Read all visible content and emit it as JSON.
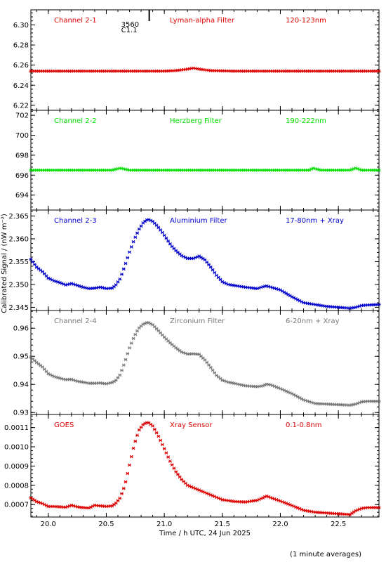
{
  "chart_data": {
    "type": "scatter",
    "xlabel": "Time / h UTC, 24 Jun 2025",
    "ylabel": "Calibrated Signal / (nW m⁻²)",
    "footnote": "(1 minute averages)",
    "xlim": [
      19.85,
      22.85
    ],
    "xticks": [
      "20.0",
      "20.5",
      "21.0",
      "21.5",
      "22.0",
      "22.5"
    ],
    "xtick_values": [
      20.0,
      20.5,
      21.0,
      21.5,
      22.0,
      22.5
    ],
    "flare_marker": {
      "x": 20.87,
      "label_top": "3560",
      "label_bottom": "C1.1"
    },
    "panels": [
      {
        "channel": "Channel 2-1",
        "filter": "Lyman-alpha Filter",
        "band": "120-123nm",
        "color": "#dd0000",
        "ylim": [
          6.215,
          6.315
        ],
        "yticks": [
          "6.22",
          "6.24",
          "6.26",
          "6.28",
          "6.30"
        ],
        "ytick_values": [
          6.22,
          6.24,
          6.26,
          6.28,
          6.3
        ],
        "points": [
          [
            19.85,
            6.254
          ],
          [
            20.0,
            6.254
          ],
          [
            20.2,
            6.254
          ],
          [
            20.4,
            6.254
          ],
          [
            20.6,
            6.254
          ],
          [
            20.8,
            6.254
          ],
          [
            21.0,
            6.254
          ],
          [
            21.1,
            6.2545
          ],
          [
            21.2,
            6.256
          ],
          [
            21.25,
            6.257
          ],
          [
            21.3,
            6.256
          ],
          [
            21.4,
            6.2545
          ],
          [
            21.6,
            6.254
          ],
          [
            21.8,
            6.254
          ],
          [
            22.0,
            6.254
          ],
          [
            22.2,
            6.254
          ],
          [
            22.4,
            6.254
          ],
          [
            22.6,
            6.254
          ],
          [
            22.85,
            6.254
          ]
        ]
      },
      {
        "channel": "Channel 2-2",
        "filter": "Herzberg Filter",
        "band": "190-222nm",
        "color": "#00dd00",
        "ylim": [
          692.5,
          702.5
        ],
        "yticks": [
          "694",
          "696",
          "698",
          "700",
          "702"
        ],
        "ytick_values": [
          694,
          696,
          698,
          700,
          702
        ],
        "points": [
          [
            19.85,
            696.5
          ],
          [
            20.2,
            696.5
          ],
          [
            20.55,
            696.5
          ],
          [
            20.62,
            696.7
          ],
          [
            20.7,
            696.5
          ],
          [
            21.0,
            696.5
          ],
          [
            21.5,
            696.5
          ],
          [
            22.0,
            696.5
          ],
          [
            22.25,
            696.5
          ],
          [
            22.28,
            696.7
          ],
          [
            22.35,
            696.5
          ],
          [
            22.6,
            696.5
          ],
          [
            22.65,
            696.7
          ],
          [
            22.7,
            696.5
          ],
          [
            22.85,
            696.5
          ]
        ]
      },
      {
        "channel": "Channel 2-3",
        "filter": "Aluminium Filter",
        "band": "17-80nm + Xray",
        "color": "#0000cc",
        "ylim": [
          2.3443,
          2.3663
        ],
        "yticks": [
          "2.345",
          "2.350",
          "2.355",
          "2.360",
          "2.365"
        ],
        "ytick_values": [
          2.345,
          2.35,
          2.355,
          2.36,
          2.365
        ],
        "points": [
          [
            19.85,
            2.3555
          ],
          [
            19.9,
            2.3538
          ],
          [
            19.95,
            2.3528
          ],
          [
            20.0,
            2.3514
          ],
          [
            20.05,
            2.3508
          ],
          [
            20.1,
            2.3504
          ],
          [
            20.15,
            2.3499
          ],
          [
            20.2,
            2.3502
          ],
          [
            20.25,
            2.3498
          ],
          [
            20.3,
            2.3494
          ],
          [
            20.35,
            2.3491
          ],
          [
            20.4,
            2.3492
          ],
          [
            20.45,
            2.3494
          ],
          [
            20.5,
            2.3491
          ],
          [
            20.55,
            2.3492
          ],
          [
            20.58,
            2.3498
          ],
          [
            20.62,
            2.3513
          ],
          [
            20.66,
            2.3541
          ],
          [
            20.7,
            2.3571
          ],
          [
            20.74,
            2.3598
          ],
          [
            20.78,
            2.362
          ],
          [
            20.82,
            2.3636
          ],
          [
            20.86,
            2.3643
          ],
          [
            20.9,
            2.3638
          ],
          [
            20.94,
            2.3628
          ],
          [
            20.98,
            2.3615
          ],
          [
            21.02,
            2.36
          ],
          [
            21.06,
            2.3585
          ],
          [
            21.1,
            2.3574
          ],
          [
            21.15,
            2.3563
          ],
          [
            21.2,
            2.3557
          ],
          [
            21.25,
            2.3557
          ],
          [
            21.3,
            2.3562
          ],
          [
            21.35,
            2.3554
          ],
          [
            21.4,
            2.3538
          ],
          [
            21.45,
            2.352
          ],
          [
            21.5,
            2.3506
          ],
          [
            21.55,
            2.35
          ],
          [
            21.6,
            2.3498
          ],
          [
            21.7,
            2.3494
          ],
          [
            21.8,
            2.3491
          ],
          [
            21.85,
            2.3495
          ],
          [
            21.88,
            2.3497
          ],
          [
            21.92,
            2.3494
          ],
          [
            22.0,
            2.3488
          ],
          [
            22.1,
            2.3473
          ],
          [
            22.2,
            2.346
          ],
          [
            22.3,
            2.3456
          ],
          [
            22.4,
            2.3452
          ],
          [
            22.5,
            2.345
          ],
          [
            22.6,
            2.3448
          ],
          [
            22.65,
            2.345
          ],
          [
            22.7,
            2.3454
          ],
          [
            22.75,
            2.3455
          ],
          [
            22.85,
            2.3456
          ]
        ]
      },
      {
        "channel": "Channel 2-4",
        "filter": "Zirconium Filter",
        "band": "6-20nm + Xray",
        "color": "#777777",
        "ylim": [
          0.9293,
          0.9663
        ],
        "yticks": [
          "0.93",
          "0.94",
          "0.95",
          "0.96"
        ],
        "ytick_values": [
          0.93,
          0.94,
          0.95,
          0.96
        ],
        "points": [
          [
            19.85,
            0.9497
          ],
          [
            19.9,
            0.9478
          ],
          [
            19.95,
            0.9462
          ],
          [
            20.0,
            0.9438
          ],
          [
            20.05,
            0.9428
          ],
          [
            20.1,
            0.9422
          ],
          [
            20.15,
            0.9417
          ],
          [
            20.2,
            0.9418
          ],
          [
            20.25,
            0.9411
          ],
          [
            20.3,
            0.9408
          ],
          [
            20.35,
            0.9404
          ],
          [
            20.4,
            0.9404
          ],
          [
            20.45,
            0.9405
          ],
          [
            20.5,
            0.9402
          ],
          [
            20.55,
            0.9407
          ],
          [
            20.58,
            0.9413
          ],
          [
            20.62,
            0.9435
          ],
          [
            20.66,
            0.948
          ],
          [
            20.7,
            0.953
          ],
          [
            20.74,
            0.957
          ],
          [
            20.78,
            0.96
          ],
          [
            20.82,
            0.9615
          ],
          [
            20.86,
            0.9621
          ],
          [
            20.9,
            0.9612
          ],
          [
            20.95,
            0.9591
          ],
          [
            21.0,
            0.9568
          ],
          [
            21.05,
            0.9548
          ],
          [
            21.1,
            0.953
          ],
          [
            21.15,
            0.9515
          ],
          [
            21.2,
            0.9508
          ],
          [
            21.25,
            0.9509
          ],
          [
            21.3,
            0.9507
          ],
          [
            21.35,
            0.9487
          ],
          [
            21.4,
            0.946
          ],
          [
            21.45,
            0.9432
          ],
          [
            21.5,
            0.9415
          ],
          [
            21.55,
            0.9408
          ],
          [
            21.6,
            0.9404
          ],
          [
            21.7,
            0.9395
          ],
          [
            21.8,
            0.9392
          ],
          [
            21.85,
            0.9395
          ],
          [
            21.88,
            0.9401
          ],
          [
            21.92,
            0.9398
          ],
          [
            22.0,
            0.9385
          ],
          [
            22.1,
            0.9367
          ],
          [
            22.2,
            0.9345
          ],
          [
            22.3,
            0.9332
          ],
          [
            22.4,
            0.933
          ],
          [
            22.5,
            0.9328
          ],
          [
            22.6,
            0.9326
          ],
          [
            22.65,
            0.933
          ],
          [
            22.7,
            0.9338
          ],
          [
            22.75,
            0.934
          ],
          [
            22.85,
            0.934
          ]
        ]
      },
      {
        "channel": "GOES",
        "filter": "Xray Sensor",
        "band": "0.1-0.8nm",
        "color": "#dd0000",
        "ylim": [
          0.000635,
          0.001168
        ],
        "yticks": [
          "0.0007",
          "0.0008",
          "0.0009",
          "0.0010",
          "0.0011"
        ],
        "ytick_values": [
          0.0007,
          0.0008,
          0.0009,
          0.001,
          0.0011
        ],
        "points": [
          [
            19.85,
            0.000735
          ],
          [
            19.9,
            0.000715
          ],
          [
            19.95,
            0.000705
          ],
          [
            20.0,
            0.00069
          ],
          [
            20.05,
            0.00069
          ],
          [
            20.1,
            0.000688
          ],
          [
            20.15,
            0.000686
          ],
          [
            20.2,
            0.000696
          ],
          [
            20.25,
            0.000688
          ],
          [
            20.3,
            0.000684
          ],
          [
            20.35,
            0.000682
          ],
          [
            20.4,
            0.000696
          ],
          [
            20.45,
            0.000693
          ],
          [
            20.5,
            0.00069
          ],
          [
            20.55,
            0.000693
          ],
          [
            20.58,
            0.000705
          ],
          [
            20.62,
            0.000735
          ],
          [
            20.66,
            0.0008
          ],
          [
            20.7,
            0.000905
          ],
          [
            20.74,
            0.00101
          ],
          [
            20.78,
            0.001085
          ],
          [
            20.82,
            0.001118
          ],
          [
            20.86,
            0.001128
          ],
          [
            20.9,
            0.001108
          ],
          [
            20.95,
            0.001055
          ],
          [
            21.0,
            0.00099
          ],
          [
            21.05,
            0.000925
          ],
          [
            21.1,
            0.00087
          ],
          [
            21.15,
            0.00083
          ],
          [
            21.2,
            0.0008
          ],
          [
            21.3,
            0.000775
          ],
          [
            21.4,
            0.00075
          ],
          [
            21.5,
            0.000725
          ],
          [
            21.6,
            0.000716
          ],
          [
            21.7,
            0.000713
          ],
          [
            21.8,
            0.000722
          ],
          [
            21.85,
            0.000735
          ],
          [
            21.88,
            0.000745
          ],
          [
            21.92,
            0.000735
          ],
          [
            22.0,
            0.000718
          ],
          [
            22.1,
            0.000695
          ],
          [
            22.2,
            0.00067
          ],
          [
            22.3,
            0.00066
          ],
          [
            22.4,
            0.000656
          ],
          [
            22.5,
            0.000652
          ],
          [
            22.6,
            0.000648
          ],
          [
            22.65,
            0.000668
          ],
          [
            22.7,
            0.00068
          ],
          [
            22.75,
            0.000684
          ],
          [
            22.85,
            0.000684
          ]
        ]
      }
    ]
  }
}
